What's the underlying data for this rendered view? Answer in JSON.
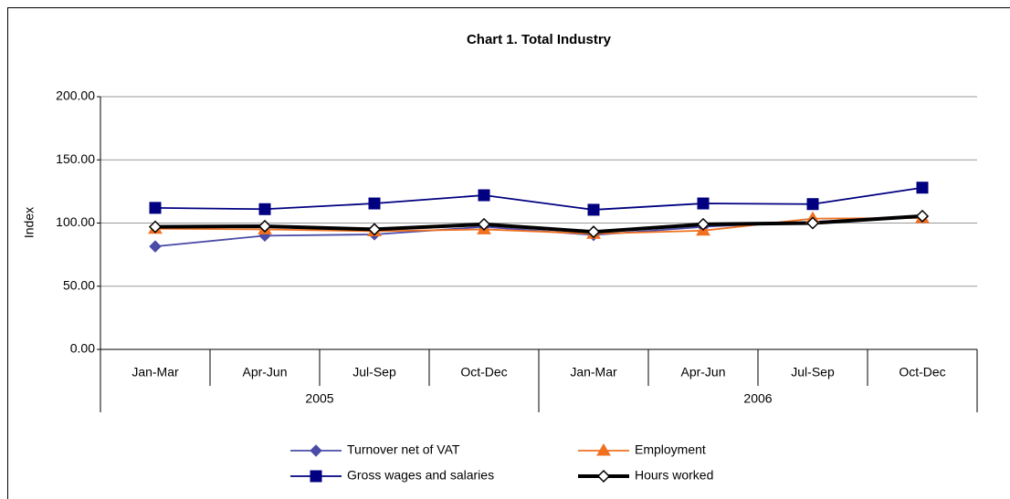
{
  "chart_data": {
    "type": "line",
    "title": "Chart 1.  Total Industry",
    "y_label": "Index",
    "categories": [
      "Jan-Mar",
      "Apr-Jun",
      "Jul-Sep",
      "Oct-Dec",
      "Jan-Mar",
      "Apr-Jun",
      "Jul-Sep",
      "Oct-Dec"
    ],
    "category_groups": [
      "2005",
      "2006"
    ],
    "ylim": [
      0,
      200
    ],
    "yticks": [
      {
        "value": 0,
        "label": "0.00"
      },
      {
        "value": 50,
        "label": "50.00"
      },
      {
        "value": 100,
        "label": "100.00"
      },
      {
        "value": 150,
        "label": "150.00"
      },
      {
        "value": 200,
        "label": "200.00"
      }
    ],
    "grid": true,
    "series": [
      {
        "name": "Turnover net of VAT",
        "color": "#4b4ba8",
        "marker": "diamond",
        "values": [
          81.5,
          90,
          91,
          97,
          90.5,
          97,
          101,
          105
        ]
      },
      {
        "name": "Employment",
        "color": "#f07020",
        "marker": "triangle",
        "values": [
          95.5,
          95,
          93.5,
          95,
          91.5,
          94,
          103.5,
          104
        ]
      },
      {
        "name": "Gross wages and salaries",
        "color": "#000080",
        "marker": "square",
        "values": [
          112,
          111,
          115.5,
          122,
          110.5,
          115.5,
          115,
          128
        ]
      },
      {
        "name": "Hours worked",
        "color": "#000000",
        "marker": "open-diamond",
        "values": [
          97,
          97.5,
          95,
          99,
          93,
          99,
          100,
          105.5
        ]
      }
    ]
  }
}
